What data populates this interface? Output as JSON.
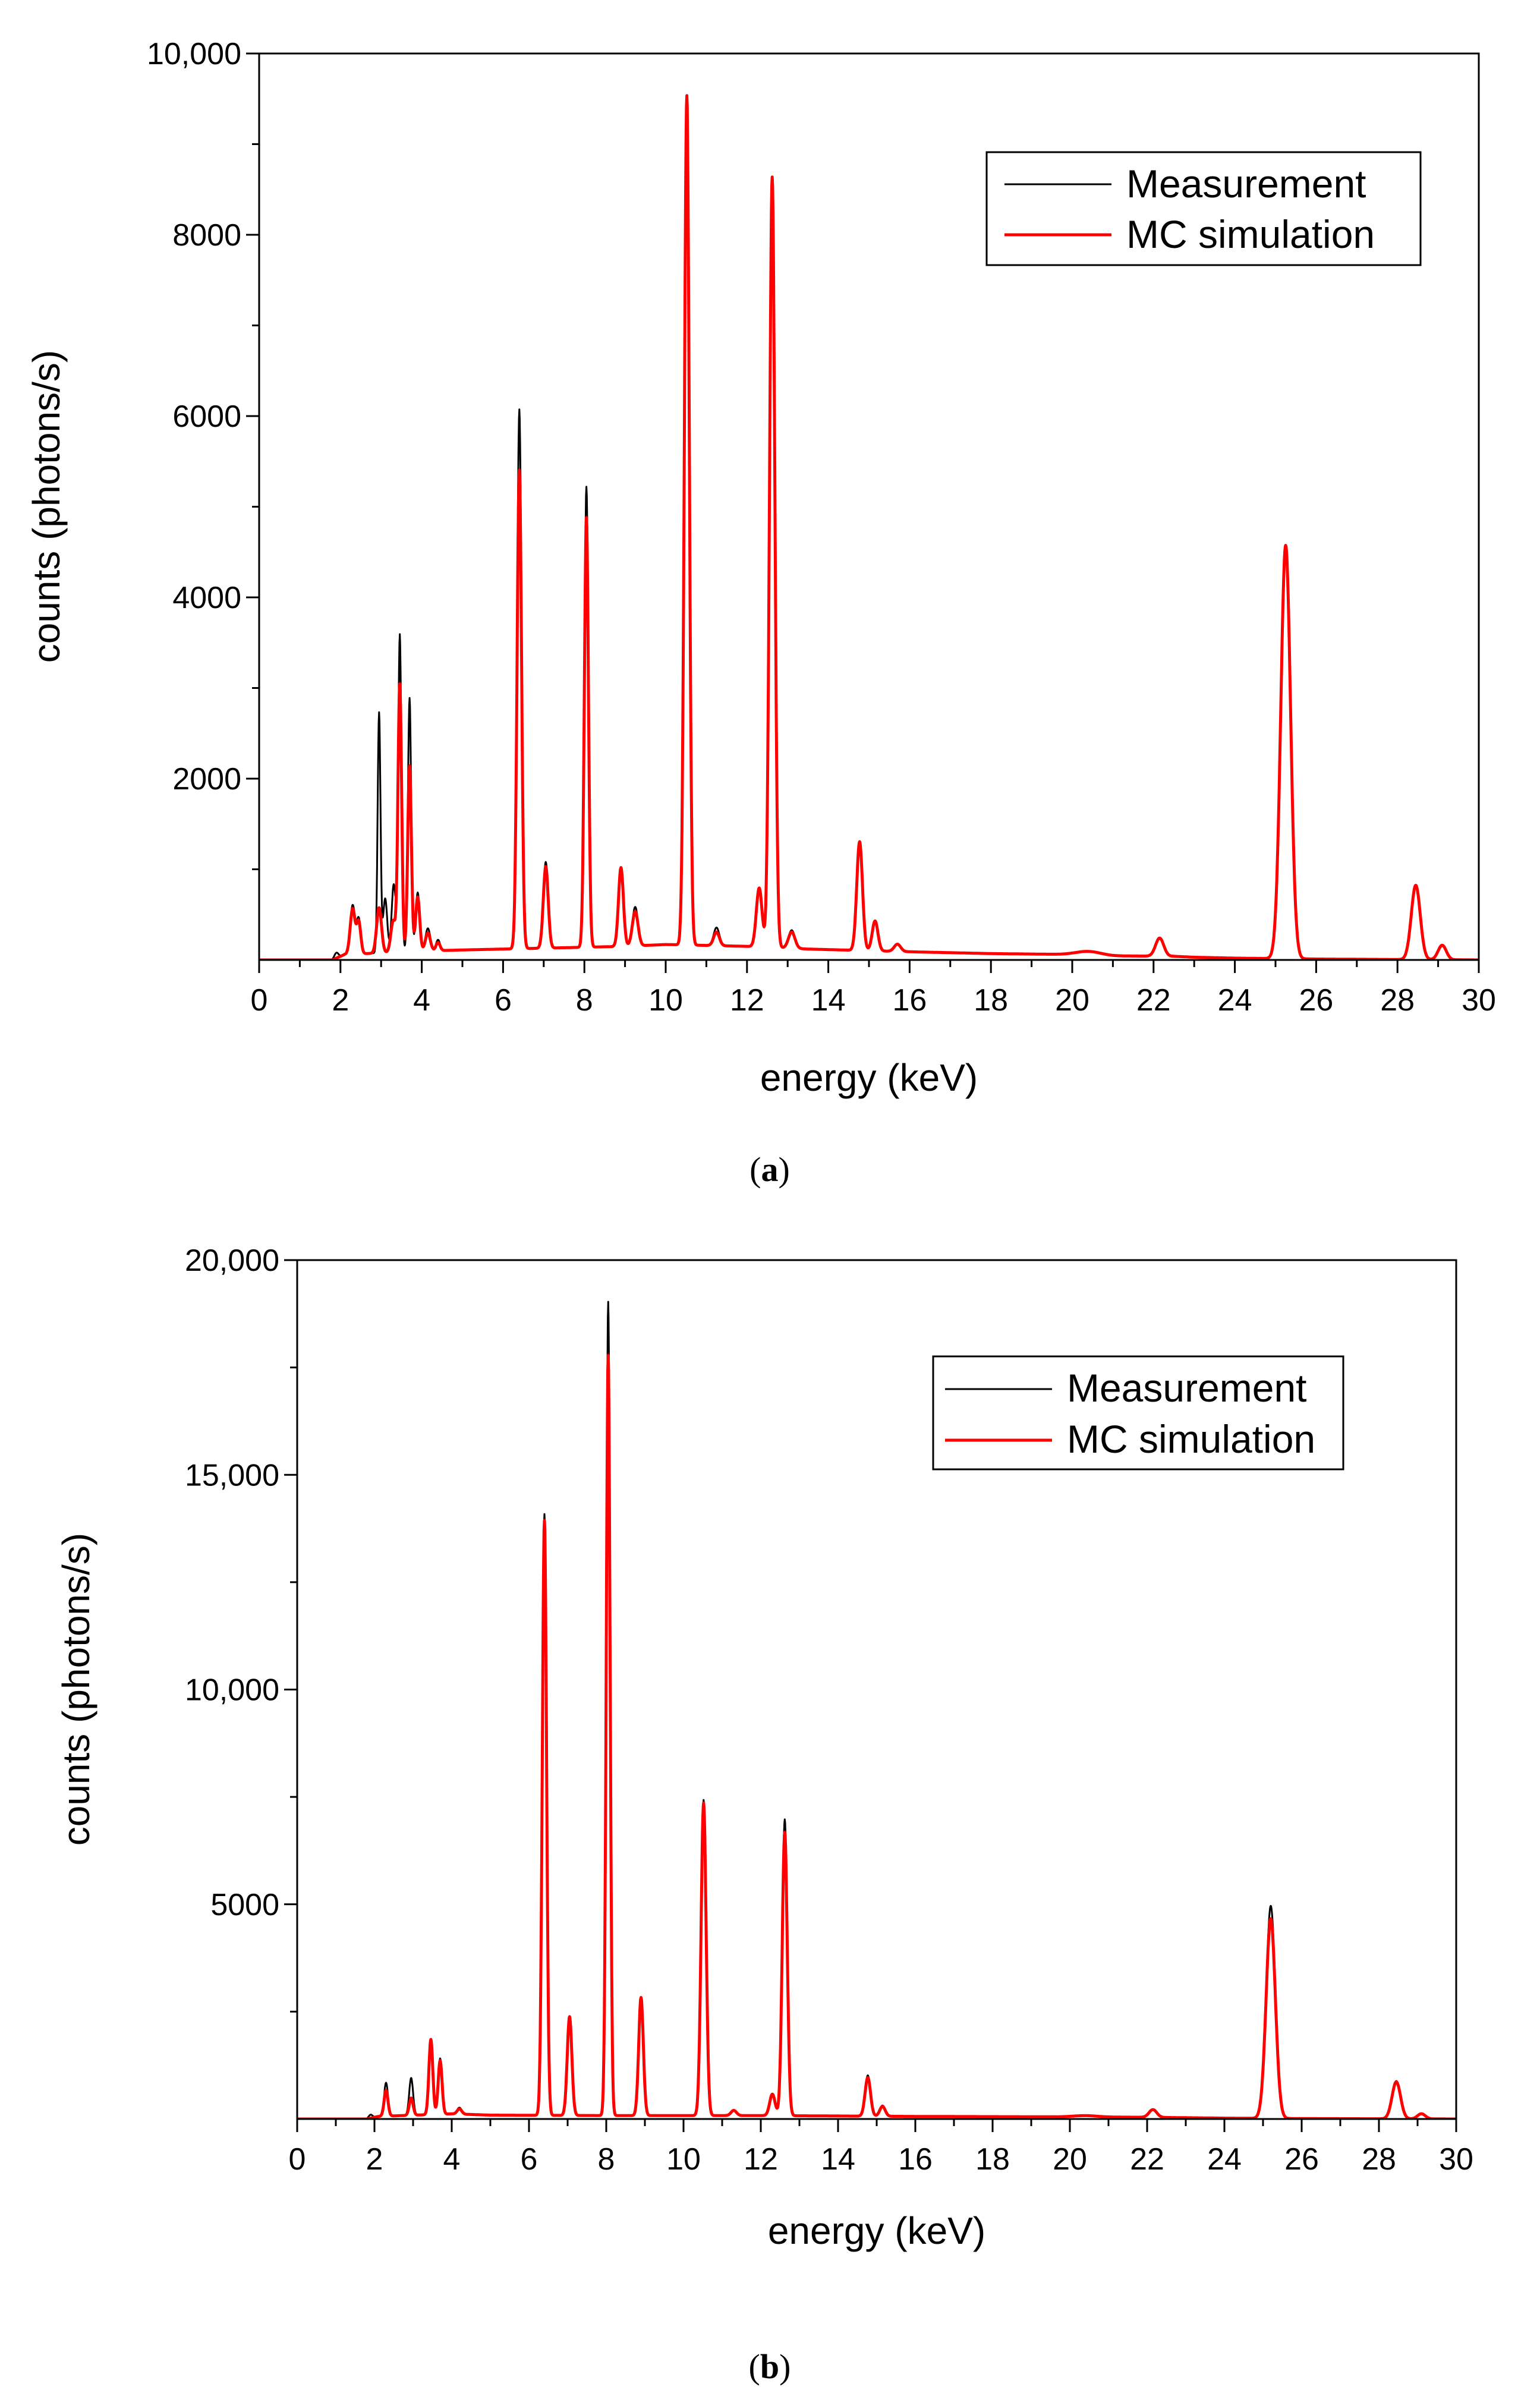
{
  "chart_data": [
    {
      "type": "line",
      "panel_label": "a",
      "xlabel": "energy (keV)",
      "ylabel": "counts (photons/s)",
      "xlim": [
        0,
        30
      ],
      "ylim": [
        0,
        10000
      ],
      "x_ticks": [
        0,
        2,
        4,
        6,
        8,
        10,
        12,
        14,
        16,
        18,
        20,
        22,
        24,
        26,
        28,
        30
      ],
      "x_tick_labels": [
        "0",
        "2",
        "4",
        "6",
        "8",
        "10",
        "12",
        "14",
        "16",
        "18",
        "20",
        "22",
        "24",
        "26",
        "28",
        "30"
      ],
      "y_ticks": [
        2000,
        4000,
        6000,
        8000,
        10000
      ],
      "y_tick_labels": [
        "2000",
        "4000",
        "6000",
        "8000",
        "10,000"
      ],
      "legend_position": "top-right",
      "baseline": [
        [
          0,
          0
        ],
        [
          1.8,
          0
        ],
        [
          2.1,
          60
        ],
        [
          4.2,
          100
        ],
        [
          5,
          110
        ],
        [
          6,
          120
        ],
        [
          9,
          150
        ],
        [
          10,
          170
        ],
        [
          12,
          150
        ],
        [
          13.5,
          120
        ],
        [
          16,
          90
        ],
        [
          18,
          70
        ],
        [
          20,
          60
        ],
        [
          21,
          45
        ],
        [
          22.5,
          40
        ],
        [
          23,
          30
        ],
        [
          24,
          20
        ],
        [
          26,
          10
        ],
        [
          28,
          5
        ],
        [
          30,
          0
        ]
      ],
      "series": [
        {
          "name": "Measurement",
          "color": "#000000",
          "peaks": [
            [
              1.9,
              60,
              0.05
            ],
            [
              2.3,
              540,
              0.06
            ],
            [
              2.45,
              380,
              0.05
            ],
            [
              2.95,
              2650,
              0.035
            ],
            [
              3.1,
              600,
              0.05
            ],
            [
              3.31,
              750,
              0.05
            ],
            [
              3.46,
              3500,
              0.04
            ],
            [
              3.7,
              2800,
              0.04
            ],
            [
              3.9,
              650,
              0.05
            ],
            [
              4.15,
              250,
              0.06
            ],
            [
              4.4,
              120,
              0.05
            ],
            [
              6.4,
              5950,
              0.055
            ],
            [
              7.05,
              950,
              0.06
            ],
            [
              8.05,
              5080,
              0.05
            ],
            [
              8.9,
              850,
              0.06
            ],
            [
              9.25,
              430,
              0.07
            ],
            [
              10.52,
              9330,
              0.06
            ],
            [
              11.25,
              200,
              0.07
            ],
            [
              12.3,
              620,
              0.07
            ],
            [
              12.62,
              8420,
              0.065
            ],
            [
              13.1,
              200,
              0.08
            ],
            [
              14.77,
              1150,
              0.07
            ],
            [
              15.15,
              320,
              0.07
            ],
            [
              15.7,
              80,
              0.08
            ],
            [
              20.4,
              40,
              0.3
            ],
            [
              22.15,
              190,
              0.1
            ],
            [
              25.25,
              4520,
              0.12
            ],
            [
              28.45,
              800,
              0.11
            ],
            [
              29.1,
              150,
              0.1
            ]
          ]
        },
        {
          "name": "MC simulation",
          "color": "#ff0000",
          "peaks": [
            [
              2.3,
              500,
              0.06
            ],
            [
              2.45,
              350,
              0.05
            ],
            [
              2.95,
              500,
              0.06
            ],
            [
              3.3,
              350,
              0.06
            ],
            [
              3.46,
              2950,
              0.045
            ],
            [
              3.7,
              2050,
              0.045
            ],
            [
              3.9,
              600,
              0.05
            ],
            [
              4.15,
              200,
              0.06
            ],
            [
              4.4,
              90,
              0.05
            ],
            [
              6.4,
              5280,
              0.055
            ],
            [
              7.05,
              900,
              0.06
            ],
            [
              8.05,
              4740,
              0.05
            ],
            [
              8.9,
              870,
              0.06
            ],
            [
              9.25,
              380,
              0.07
            ],
            [
              10.52,
              9370,
              0.06
            ],
            [
              11.25,
              150,
              0.07
            ],
            [
              12.3,
              650,
              0.07
            ],
            [
              12.62,
              8500,
              0.065
            ],
            [
              13.1,
              180,
              0.08
            ],
            [
              14.77,
              1200,
              0.07
            ],
            [
              15.15,
              330,
              0.07
            ],
            [
              15.7,
              80,
              0.08
            ],
            [
              20.4,
              40,
              0.3
            ],
            [
              22.15,
              200,
              0.1
            ],
            [
              25.25,
              4560,
              0.12
            ],
            [
              28.45,
              820,
              0.11
            ],
            [
              29.1,
              160,
              0.1
            ]
          ]
        }
      ]
    },
    {
      "type": "line",
      "panel_label": "b",
      "xlabel": "energy (keV)",
      "ylabel": "counts (photons/s)",
      "xlim": [
        0,
        30
      ],
      "ylim": [
        0,
        20000
      ],
      "x_ticks": [
        0,
        2,
        4,
        6,
        8,
        10,
        12,
        14,
        16,
        18,
        20,
        22,
        24,
        26,
        28,
        30
      ],
      "x_tick_labels": [
        "0",
        "2",
        "4",
        "6",
        "8",
        "10",
        "12",
        "14",
        "16",
        "18",
        "20",
        "22",
        "24",
        "26",
        "28",
        "30"
      ],
      "y_ticks": [
        5000,
        10000,
        15000,
        20000
      ],
      "y_tick_labels": [
        "5000",
        "10,000",
        "15,000",
        "20,000"
      ],
      "legend_position": "top-right",
      "baseline": [
        [
          0,
          0
        ],
        [
          1.8,
          0
        ],
        [
          2.1,
          60
        ],
        [
          4,
          120
        ],
        [
          5,
          90
        ],
        [
          8,
          80
        ],
        [
          12,
          80
        ],
        [
          14,
          70
        ],
        [
          16,
          60
        ],
        [
          20,
          50
        ],
        [
          22,
          40
        ],
        [
          24,
          20
        ],
        [
          26,
          10
        ],
        [
          28,
          5
        ],
        [
          30,
          0
        ]
      ],
      "series": [
        {
          "name": "Measurement",
          "color": "#000000",
          "peaks": [
            [
              1.9,
              80,
              0.05
            ],
            [
              2.3,
              780,
              0.05
            ],
            [
              2.95,
              870,
              0.05
            ],
            [
              3.46,
              1650,
              0.05
            ],
            [
              3.7,
              1300,
              0.05
            ],
            [
              4.2,
              150,
              0.06
            ],
            [
              6.4,
              14000,
              0.055
            ],
            [
              7.05,
              2280,
              0.06
            ],
            [
              8.05,
              18950,
              0.05
            ],
            [
              8.9,
              2700,
              0.06
            ],
            [
              10.52,
              7350,
              0.065
            ],
            [
              11.3,
              130,
              0.07
            ],
            [
              12.3,
              480,
              0.07
            ],
            [
              12.62,
              6900,
              0.065
            ],
            [
              14.77,
              950,
              0.07
            ],
            [
              15.15,
              250,
              0.07
            ],
            [
              20.4,
              30,
              0.3
            ],
            [
              22.15,
              170,
              0.1
            ],
            [
              25.2,
              4950,
              0.12
            ],
            [
              28.45,
              880,
              0.11
            ],
            [
              29.1,
              130,
              0.1
            ]
          ]
        },
        {
          "name": "MC simulation",
          "color": "#ff0000",
          "peaks": [
            [
              2.3,
              600,
              0.05
            ],
            [
              2.95,
              400,
              0.05
            ],
            [
              3.46,
              1750,
              0.05
            ],
            [
              3.7,
              1250,
              0.05
            ],
            [
              4.2,
              120,
              0.06
            ],
            [
              6.4,
              13850,
              0.055
            ],
            [
              7.05,
              2300,
              0.06
            ],
            [
              8.05,
              17700,
              0.05
            ],
            [
              8.9,
              2750,
              0.06
            ],
            [
              10.52,
              7280,
              0.065
            ],
            [
              11.3,
              120,
              0.07
            ],
            [
              12.3,
              500,
              0.07
            ],
            [
              12.62,
              6600,
              0.065
            ],
            [
              14.77,
              900,
              0.07
            ],
            [
              15.15,
              230,
              0.07
            ],
            [
              20.4,
              30,
              0.3
            ],
            [
              22.15,
              180,
              0.1
            ],
            [
              25.2,
              4650,
              0.12
            ],
            [
              28.45,
              860,
              0.11
            ],
            [
              29.1,
              120,
              0.1
            ]
          ]
        }
      ]
    }
  ]
}
